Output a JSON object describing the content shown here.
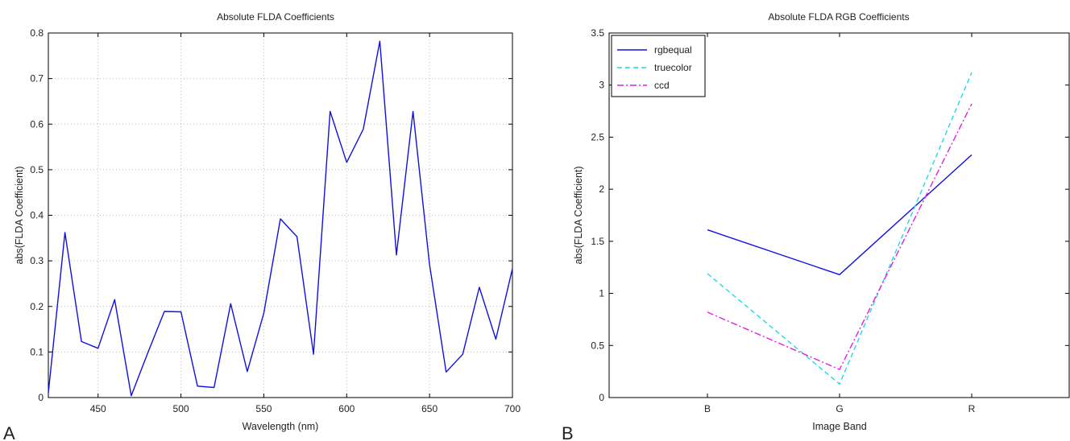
{
  "panels": [
    "A",
    "B"
  ],
  "chart_data": [
    {
      "type": "line",
      "title": "Absolute FLDA Coefficients",
      "xlabel": "Wavelength (nm)",
      "ylabel": "abs(FLDA Coefficient)",
      "xlim": [
        420,
        700
      ],
      "ylim": [
        0,
        0.8
      ],
      "xticks": [
        "450",
        "500",
        "550",
        "600",
        "650",
        "700"
      ],
      "yticks": [
        "0",
        "0.1",
        "0.2",
        "0.3",
        "0.4",
        "0.5",
        "0.6",
        "0.7",
        "0.8"
      ],
      "grid": true,
      "x": [
        420,
        430,
        440,
        450,
        460,
        470,
        480,
        490,
        500,
        510,
        520,
        530,
        540,
        550,
        560,
        570,
        580,
        590,
        600,
        610,
        620,
        630,
        640,
        650,
        660,
        670,
        680,
        690,
        700
      ],
      "series": [
        {
          "color": "#1010e0",
          "values": [
            0.01,
            0.362,
            0.123,
            0.108,
            0.215,
            0.004,
            0.098,
            0.189,
            0.188,
            0.025,
            0.022,
            0.206,
            0.057,
            0.185,
            0.392,
            0.353,
            0.095,
            0.628,
            0.516,
            0.589,
            0.782,
            0.313,
            0.628,
            0.292,
            0.056,
            0.095,
            0.242,
            0.128,
            0.283
          ]
        }
      ]
    },
    {
      "type": "line",
      "title": "Absolute FLDA RGB Coefficients",
      "xlabel": "Image Band",
      "ylabel": "abs(FLDA Coefficient)",
      "categories": [
        "B",
        "G",
        "R"
      ],
      "ylim": [
        0,
        3.5
      ],
      "yticks": [
        "0",
        "0.5",
        "1",
        "1.5",
        "2",
        "2.5",
        "3",
        "3.5"
      ],
      "grid": false,
      "legend": "top-left",
      "series": [
        {
          "name": "rgbequal",
          "color": "#1010e0",
          "dash": "solid",
          "values": [
            1.61,
            1.18,
            2.33
          ]
        },
        {
          "name": "truecolor",
          "color": "#22d8e8",
          "dash": "dashed",
          "values": [
            1.19,
            0.13,
            3.12
          ]
        },
        {
          "name": "ccd",
          "color": "#e020e0",
          "dash": "dashdot",
          "values": [
            0.82,
            0.27,
            2.82
          ]
        }
      ]
    }
  ]
}
